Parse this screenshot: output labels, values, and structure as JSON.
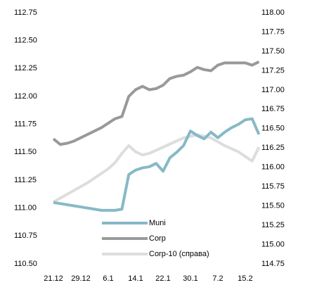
{
  "chart_data": {
    "type": "line",
    "categories": [
      "21.12",
      null,
      null,
      null,
      "29.12",
      null,
      null,
      null,
      "6.1",
      null,
      null,
      null,
      "14.1",
      null,
      null,
      null,
      "22.1",
      null,
      null,
      null,
      "30.1",
      null,
      null,
      null,
      "7.2",
      null,
      null,
      null,
      "15.2",
      null,
      null
    ],
    "series": [
      {
        "name": "Muni",
        "color": "#86b9c6",
        "values": [
          111.05,
          111.04,
          111.03,
          111.02,
          111.01,
          111.0,
          110.99,
          110.98,
          110.98,
          110.98,
          110.99,
          111.3,
          111.34,
          111.36,
          111.37,
          111.4,
          111.33,
          111.45,
          111.5,
          111.56,
          111.69,
          111.65,
          111.62,
          111.68,
          111.63,
          111.68,
          111.72,
          111.75,
          111.79,
          111.8,
          111.66
        ]
      },
      {
        "name": "Corp",
        "color": "#999999",
        "values": [
          111.62,
          111.57,
          111.58,
          111.6,
          111.63,
          111.66,
          111.69,
          111.72,
          111.76,
          111.8,
          111.82,
          112.0,
          112.06,
          112.09,
          112.06,
          112.07,
          112.1,
          112.16,
          112.18,
          112.19,
          112.22,
          112.26,
          112.24,
          112.23,
          112.28,
          112.3,
          112.3,
          112.3,
          112.3,
          112.28,
          112.31
        ]
      },
      {
        "name": "Corp-10 (справа)",
        "color": "#dddddd",
        "axis": "y2",
        "values": [
          115.55,
          115.6,
          115.65,
          115.7,
          115.75,
          115.8,
          115.86,
          115.92,
          115.98,
          116.06,
          116.18,
          116.28,
          116.2,
          116.16,
          116.18,
          116.22,
          116.26,
          116.3,
          116.34,
          116.38,
          116.4,
          116.42,
          116.4,
          116.38,
          116.33,
          116.28,
          116.24,
          116.2,
          116.14,
          116.08,
          116.26
        ]
      }
    ],
    "ylim": [
      110.5,
      112.75
    ],
    "yticks": [
      {
        "value": 110.5,
        "label": "110.50"
      },
      110.75,
      {
        "value": 111,
        "label": "111.00"
      },
      111.25,
      {
        "value": 111.5,
        "label": "111.50"
      },
      111.75,
      {
        "value": 112,
        "label": "112.00"
      },
      112.25,
      {
        "value": 112.5,
        "label": "112.50"
      },
      112.75
    ],
    "y2lim": [
      114.75,
      118
    ],
    "y2ticks": [
      114.75,
      {
        "value": 115,
        "label": "115.00"
      },
      115.25,
      {
        "value": 115.5,
        "label": "115.50"
      },
      115.75,
      {
        "value": 116,
        "label": "116.00"
      },
      116.25,
      {
        "value": 116.5,
        "label": "116.50"
      },
      116.75,
      {
        "value": 117,
        "label": "117.00"
      },
      117.25,
      {
        "value": 117.5,
        "label": "117.50"
      },
      117.75,
      {
        "value": 118,
        "label": "118.00"
      }
    ],
    "grid": false,
    "legend": "bottom"
  }
}
